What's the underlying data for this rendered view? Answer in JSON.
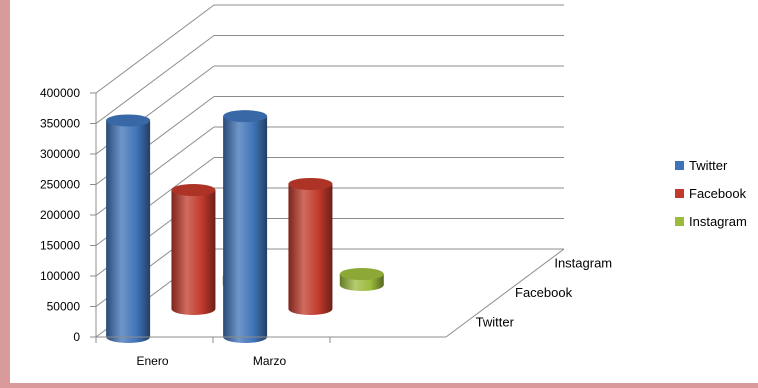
{
  "chart_data": {
    "type": "bar",
    "subtype": "3d-column",
    "categories": [
      "Enero",
      "Marzo"
    ],
    "depth_axis": [
      "Twitter",
      "Facebook",
      "Instagram"
    ],
    "series": [
      {
        "name": "Twitter",
        "values": [
          355000,
          362000
        ],
        "color": "#3f73b8"
      },
      {
        "name": "Facebook",
        "values": [
          195000,
          205000
        ],
        "color": "#c0392b"
      },
      {
        "name": "Instagram",
        "values": [
          15000,
          18000
        ],
        "color": "#9bbb3c"
      }
    ],
    "ylim": [
      0,
      400000
    ],
    "yticks": [
      "0",
      "50000",
      "100000",
      "150000",
      "200000",
      "250000",
      "300000",
      "350000",
      "400000"
    ],
    "legend_position": "right",
    "grid": true
  }
}
